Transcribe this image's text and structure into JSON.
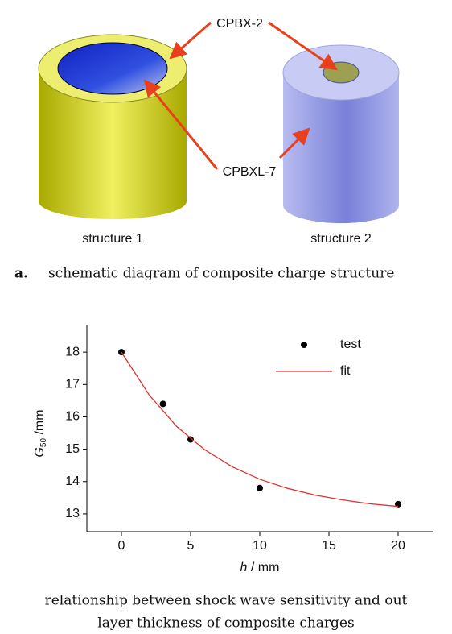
{
  "diagram": {
    "labels": {
      "inner": "CPBX-2",
      "outer": "CPBXL-7"
    },
    "structures": [
      "structure 1",
      "structure 2"
    ],
    "caption": {
      "label": "a.",
      "text": "schematic diagram of composite charge structure"
    }
  },
  "chart_data": {
    "type": "scatter",
    "xlabel": {
      "symbol": "h",
      "unit": " / mm"
    },
    "ylabel": {
      "symbol": "G",
      "subscript": "50",
      "unit": " /mm"
    },
    "xlim": [
      -2.5,
      22.5
    ],
    "ylim": [
      12.45,
      18.85
    ],
    "xticks": [
      0,
      5,
      10,
      15,
      20
    ],
    "yticks": [
      13,
      14,
      15,
      16,
      17,
      18
    ],
    "legend": "upper right",
    "series": [
      {
        "name": "test",
        "type": "scatter",
        "color": "#000000",
        "x": [
          0,
          3,
          5,
          10,
          20
        ],
        "values": [
          18,
          16.4,
          15.3,
          13.8,
          13.3
        ]
      },
      {
        "name": "fit",
        "type": "line",
        "color": "#e03030",
        "x": [
          0,
          2,
          4,
          6,
          8,
          10,
          12,
          14,
          16,
          18,
          20
        ],
        "values": [
          18,
          16.68,
          15.7,
          14.99,
          14.46,
          14.07,
          13.79,
          13.58,
          13.43,
          13.31,
          13.23
        ]
      }
    ],
    "caption": [
      "relationship between shock wave sensitivity and out",
      "layer thickness of composite charges"
    ]
  }
}
